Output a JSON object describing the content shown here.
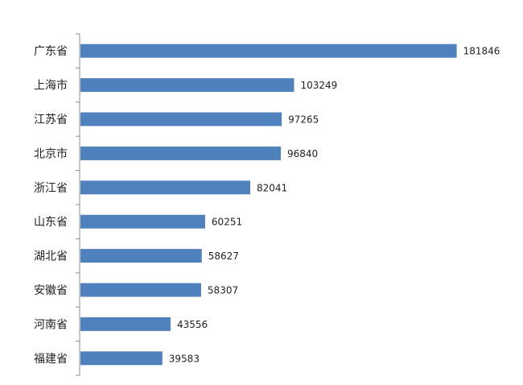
{
  "chart_data": {
    "type": "bar",
    "orientation": "horizontal",
    "categories": [
      "广东省",
      "上海市",
      "江苏省",
      "北京市",
      "浙江省",
      "山东省",
      "湖北省",
      "安徽省",
      "河南省",
      "福建省"
    ],
    "values": [
      181846,
      103249,
      97265,
      96840,
      82041,
      60251,
      58627,
      58307,
      43556,
      39583
    ],
    "value_labels": [
      "181846",
      "103249",
      "97265",
      "96840",
      "82041",
      "60251",
      "58627",
      "58307",
      "43556",
      "39583"
    ],
    "bar_color": "#4f81bd",
    "grid": false,
    "legend": "none",
    "xlim": [
      0,
      182000
    ]
  }
}
